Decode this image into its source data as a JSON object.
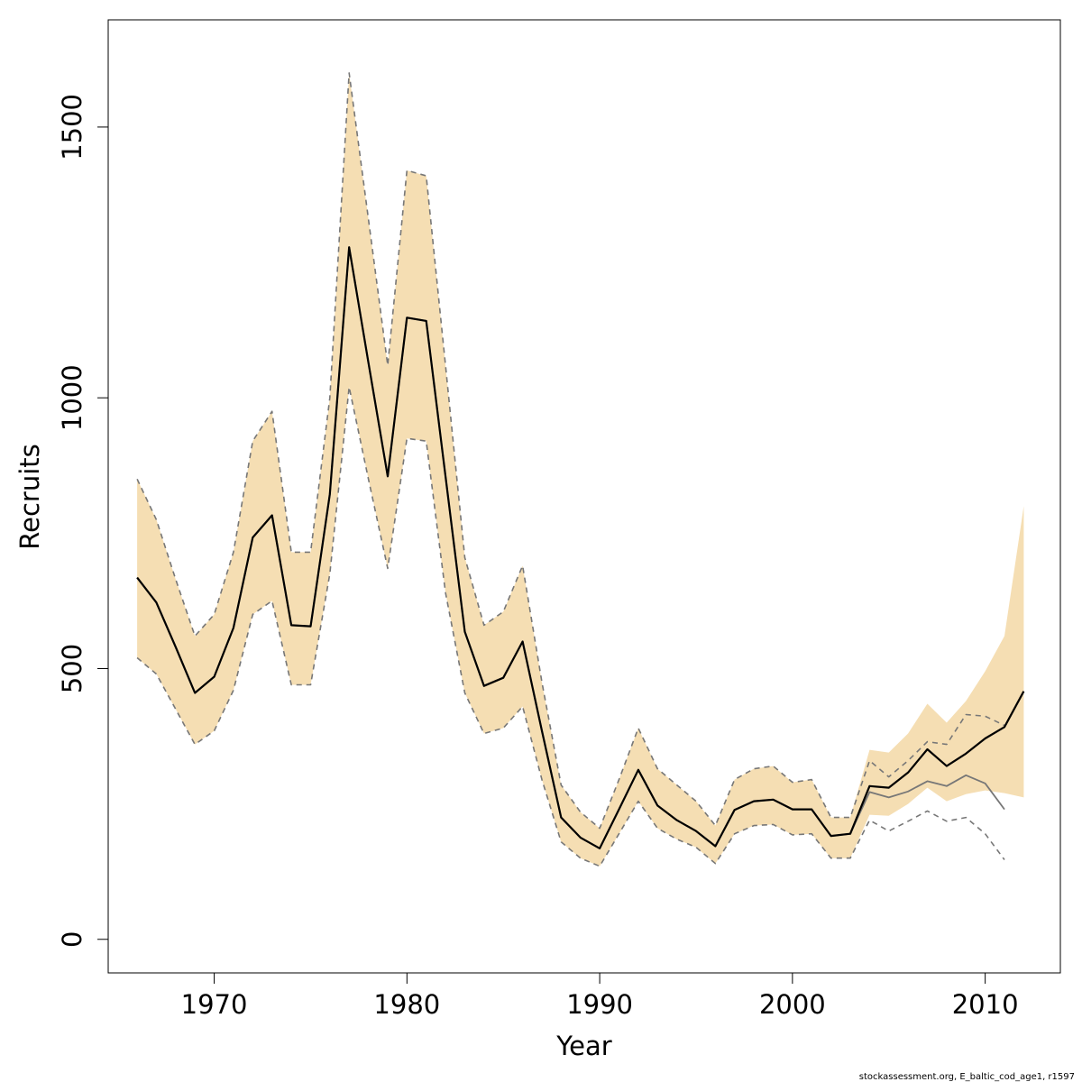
{
  "chart_data": {
    "type": "line",
    "title": "",
    "xlabel": "Year",
    "ylabel": "Recruits",
    "xlim": [
      1964.5,
      2013.9
    ],
    "ylim": [
      -62,
      1698
    ],
    "x_ticks": [
      1970,
      1980,
      1990,
      2000,
      2010
    ],
    "x_tick_labels": [
      "1970",
      "1980",
      "1990",
      "2000",
      "2010"
    ],
    "y_ticks": [
      0,
      500,
      1000,
      1500
    ],
    "y_tick_labels": [
      "0",
      "500",
      "1000",
      "1500"
    ],
    "grid": false,
    "legend": "none",
    "colors": {
      "band_fill": "#f5deb3",
      "estimate": "#000000",
      "retro_estimate": "#777777",
      "retro_bounds": "#777777"
    },
    "band": {
      "x": [
        1966,
        1967,
        1968,
        1969,
        1970,
        1971,
        1972,
        1973,
        1974,
        1975,
        1976,
        1977,
        1978,
        1979,
        1980,
        1981,
        1982,
        1983,
        1984,
        1985,
        1986,
        1987,
        1988,
        1989,
        1990,
        1991,
        1992,
        1993,
        1994,
        1995,
        1996,
        1997,
        1998,
        1999,
        2000,
        2001,
        2002,
        2003,
        2004,
        2005,
        2006,
        2007,
        2008,
        2009,
        2010,
        2011,
        2012
      ],
      "lower": [
        520,
        490,
        425,
        360,
        385,
        460,
        600,
        625,
        470,
        470,
        675,
        1020,
        850,
        685,
        925,
        920,
        640,
        455,
        380,
        390,
        430,
        295,
        180,
        150,
        135,
        195,
        255,
        205,
        185,
        170,
        140,
        195,
        210,
        212,
        193,
        195,
        150,
        150,
        230,
        228,
        250,
        280,
        255,
        268,
        275,
        270,
        262
      ],
      "upper": [
        850,
        775,
        665,
        560,
        600,
        715,
        920,
        975,
        715,
        715,
        1000,
        1600,
        1330,
        1060,
        1420,
        1410,
        1060,
        705,
        580,
        605,
        690,
        475,
        285,
        235,
        205,
        295,
        390,
        315,
        285,
        255,
        210,
        295,
        315,
        320,
        290,
        295,
        225,
        225,
        350,
        345,
        380,
        435,
        400,
        440,
        495,
        560,
        800
      ]
    },
    "series": [
      {
        "name": "",
        "style": "solid-black",
        "x": [
          1966,
          1967,
          1968,
          1969,
          1970,
          1971,
          1972,
          1973,
          1974,
          1975,
          1976,
          1977,
          1978,
          1979,
          1980,
          1981,
          1982,
          1983,
          1984,
          1985,
          1986,
          1987,
          1988,
          1989,
          1990,
          1991,
          1992,
          1993,
          1994,
          1995,
          1996,
          1997,
          1998,
          1999,
          2000,
          2001,
          2002,
          2003,
          2004,
          2005,
          2006,
          2007,
          2008,
          2009,
          2010,
          2011,
          2012
        ],
        "values": [
          668,
          622,
          540,
          455,
          485,
          575,
          742,
          783,
          580,
          578,
          822,
          1278,
          1065,
          855,
          1148,
          1142,
          855,
          568,
          468,
          483,
          550,
          385,
          225,
          188,
          168,
          240,
          313,
          247,
          220,
          200,
          172,
          239,
          255,
          258,
          240,
          240,
          191,
          195,
          283,
          280,
          308,
          351,
          320,
          343,
          371,
          392,
          458
        ]
      },
      {
        "name": "",
        "style": "solid-grey",
        "x": [
          1966,
          1967,
          1968,
          1969,
          1970,
          1971,
          1972,
          1973,
          1974,
          1975,
          1976,
          1977,
          1978,
          1979,
          1980,
          1981,
          1982,
          1983,
          1984,
          1985,
          1986,
          1987,
          1988,
          1989,
          1990,
          1991,
          1992,
          1993,
          1994,
          1995,
          1996,
          1997,
          1998,
          1999,
          2000,
          2001,
          2002,
          2003,
          2004,
          2005,
          2006,
          2007,
          2008,
          2009,
          2010,
          2011
        ],
        "values": [
          668,
          622,
          540,
          455,
          485,
          575,
          742,
          783,
          580,
          578,
          822,
          1278,
          1065,
          855,
          1148,
          1142,
          855,
          568,
          468,
          483,
          550,
          385,
          225,
          188,
          168,
          240,
          313,
          247,
          220,
          200,
          172,
          239,
          255,
          258,
          240,
          240,
          191,
          195,
          272,
          262,
          273,
          292,
          283,
          303,
          288,
          240
        ]
      },
      {
        "name": "",
        "style": "dashed-grey",
        "x": [
          1966,
          1967,
          1968,
          1969,
          1970,
          1971,
          1972,
          1973,
          1974,
          1975,
          1976,
          1977,
          1978,
          1979,
          1980,
          1981,
          1982,
          1983,
          1984,
          1985,
          1986,
          1987,
          1988,
          1989,
          1990,
          1991,
          1992,
          1993,
          1994,
          1995,
          1996,
          1997,
          1998,
          1999,
          2000,
          2001,
          2002,
          2003,
          2004,
          2005,
          2006,
          2007,
          2008,
          2009,
          2010,
          2011
        ],
        "values": [
          850,
          775,
          665,
          560,
          600,
          715,
          920,
          975,
          715,
          715,
          1000,
          1600,
          1330,
          1060,
          1420,
          1410,
          1060,
          705,
          580,
          605,
          690,
          475,
          285,
          235,
          205,
          295,
          390,
          315,
          285,
          255,
          210,
          295,
          315,
          320,
          290,
          295,
          225,
          225,
          330,
          300,
          330,
          365,
          360,
          415,
          412,
          395
        ]
      },
      {
        "name": "",
        "style": "dashed-grey",
        "x": [
          1966,
          1967,
          1968,
          1969,
          1970,
          1971,
          1972,
          1973,
          1974,
          1975,
          1976,
          1977,
          1978,
          1979,
          1980,
          1981,
          1982,
          1983,
          1984,
          1985,
          1986,
          1987,
          1988,
          1989,
          1990,
          1991,
          1992,
          1993,
          1994,
          1995,
          1996,
          1997,
          1998,
          1999,
          2000,
          2001,
          2002,
          2003,
          2004,
          2005,
          2006,
          2007,
          2008,
          2009,
          2010,
          2011
        ],
        "values": [
          520,
          490,
          425,
          360,
          385,
          460,
          600,
          625,
          470,
          470,
          675,
          1020,
          850,
          685,
          925,
          920,
          640,
          455,
          380,
          390,
          430,
          295,
          180,
          150,
          135,
          195,
          255,
          205,
          185,
          170,
          140,
          195,
          210,
          212,
          193,
          195,
          150,
          150,
          220,
          200,
          218,
          237,
          218,
          225,
          195,
          147
        ]
      }
    ]
  },
  "footer": {
    "credit": "stockassessment.org, E_baltic_cod_age1, r1597"
  }
}
